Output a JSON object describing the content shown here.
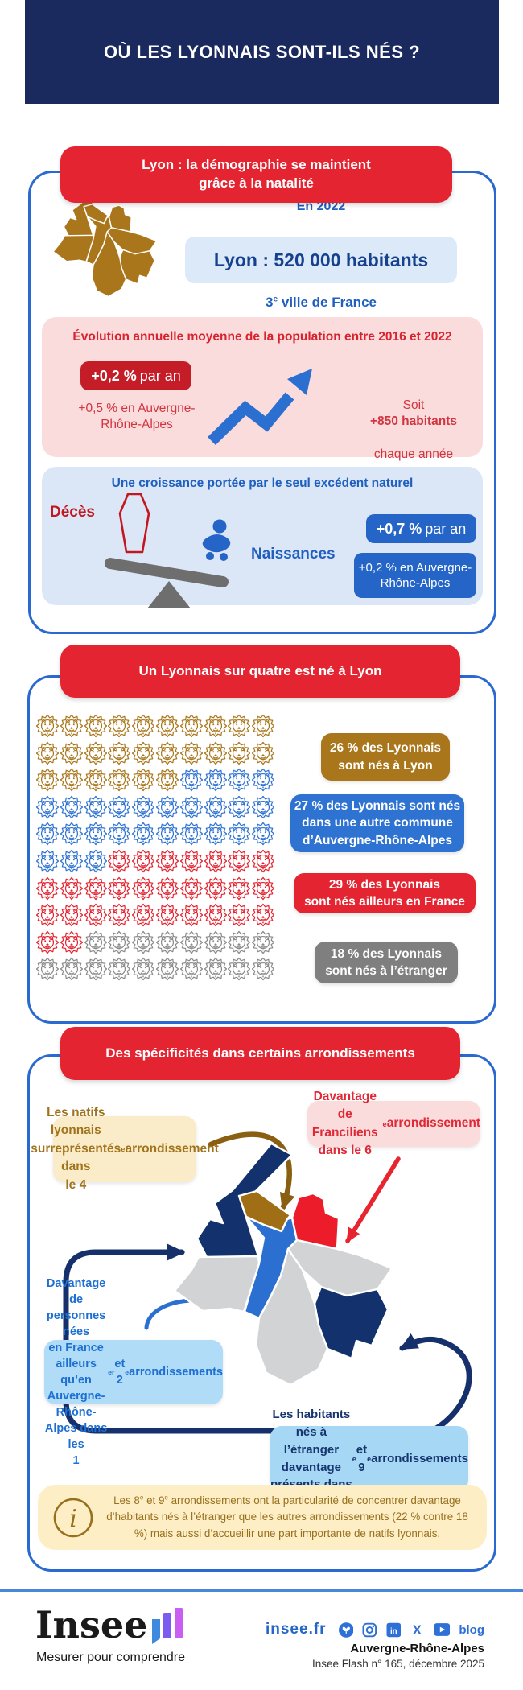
{
  "header": {
    "title": "OÙ LES LYONNAIS SONT-ILS NÉS ?"
  },
  "s1": {
    "title": "Lyon : la démographie se maintient\ngrâce à la natalité",
    "year": "En 2022",
    "population": "Lyon : 520 000 habitants",
    "rank": "3^e^ ville de France",
    "evolution": {
      "title": "Évolution annuelle moyenne de la population entre 2016 et 2022",
      "rate": "+0,2 %",
      "rate_suffix": "par an",
      "region_rate": "+0,5 % en Auvergne-\nRhône-Alpes",
      "soit_1": "Soit",
      "soit_2": "+850 habitants",
      "soit_3": "chaque année"
    },
    "growth": {
      "title": "Une croissance portée par le seul excédent naturel",
      "deaths": "Décès",
      "births": "Naissances",
      "rate": "+0,7 %",
      "rate_suffix": "par an",
      "region_rate": "+0,2 % en Auvergne-\nRhône-Alpes"
    }
  },
  "s2": {
    "title": "Un Lyonnais sur quatre est né à Lyon",
    "legend": {
      "lyon": "26 % des Lyonnais\nsont nés à Lyon",
      "aura": "27 % des Lyonnais sont nés\ndans une autre commune\nd’Auvergne-Rhône-Alpes",
      "france": "29 % des Lyonnais\nsont nés ailleurs en France",
      "etranger": "18 % des Lyonnais\nsont nés à l’étranger"
    }
  },
  "s3": {
    "title": "Des spécificités dans certains arrondissements",
    "natifs": "Les natifs lyonnais\nsurreprésentés dans\nle 4^e^ arrondissement",
    "franciliens": "Davantage de Franciliens\ndans le 6^e^ arrondissement",
    "france": "Davantage de personnes nées\nen France ailleurs qu’en\nAuvergne-Rhône-Alpes dans les\n1^er^ et 2^e^ arrondissements",
    "etranger": "Les habitants nés à l’étranger\ndavantage présents dans\nles 8^e^ et 9^e^ arrondissements",
    "note": "Les 8^e^ et 9^e^ arrondissements ont la particularité de concentrer davantage d’habitants nés à l’étranger que les autres arrondissements (22 % contre 18 %) mais aussi d’accueillir une part importante de natifs lyonnais."
  },
  "chart_data": {
    "type": "waffle",
    "title": "Un Lyonnais sur quatre est né à Lyon",
    "grid": [
      10,
      10
    ],
    "categories": [
      "Nés à Lyon",
      "Nés dans une autre commune d’Auvergne-Rhône-Alpes",
      "Nés ailleurs en France",
      "Nés à l’étranger"
    ],
    "values": [
      26,
      27,
      29,
      18
    ],
    "colors": [
      "#a9761b",
      "#2e72d2",
      "#e42430",
      "#8a8a8a"
    ],
    "icon": "lion-head"
  },
  "footer": {
    "logo": "Insee",
    "tagline": "Mesurer pour comprendre",
    "site": "insee.fr",
    "blog": "blog",
    "region": "Auvergne-Rhône-Alpes",
    "issue": "Insee Flash n° 165, décembre 2025"
  },
  "colors": {
    "header_navy": "#1b2a5e",
    "insee_red": "#e42430",
    "frame_blue": "#2a6ad0",
    "accent_blue": "#2565c7",
    "light_blue_bg": "#dbe7f7",
    "pink_bg": "#fadcdc",
    "cream_bg": "#faecc9",
    "gold": "#a9761b",
    "map_navy": "#13316d",
    "map_gray": "#d2d3d5",
    "gray_pill": "#7f7f7f",
    "footer_line": "#4886dd"
  }
}
